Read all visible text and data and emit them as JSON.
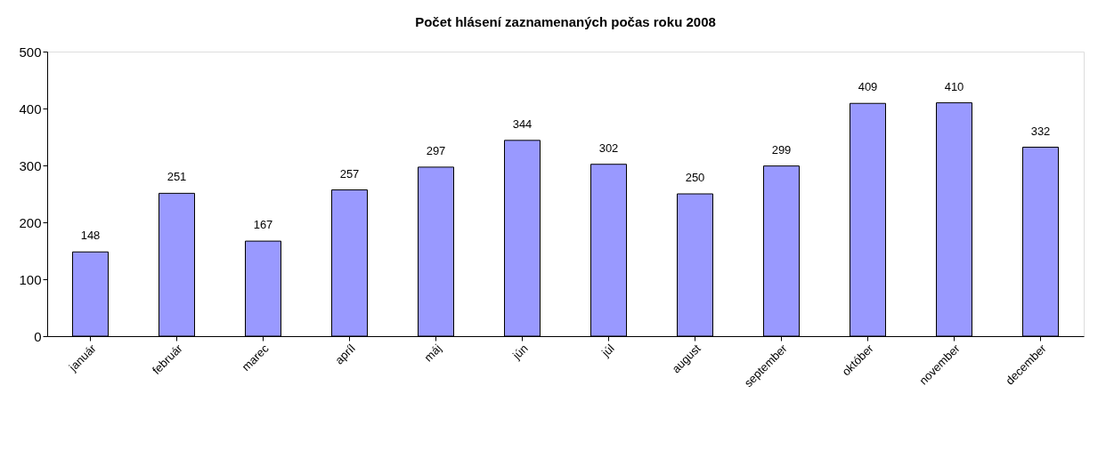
{
  "chart_data": {
    "type": "bar",
    "title": "Počet hlásení zaznamenaných počas roku 2008",
    "categories": [
      "január",
      "február",
      "marec",
      "apríl",
      "máj",
      "jún",
      "júl",
      "august",
      "september",
      "október",
      "november",
      "december"
    ],
    "values": [
      148,
      251,
      167,
      257,
      297,
      344,
      302,
      250,
      299,
      409,
      410,
      332
    ],
    "color": "#9999ff",
    "ylim": [
      0,
      500
    ],
    "yticks": [
      0,
      100,
      200,
      300,
      400,
      500
    ],
    "grid": false,
    "data_labels": true
  }
}
